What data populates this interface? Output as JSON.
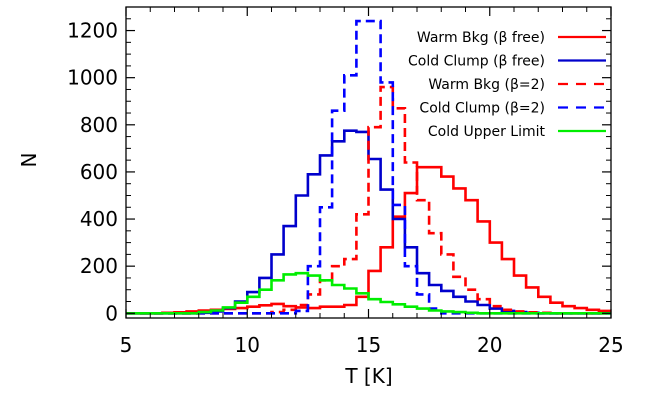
{
  "chart_data": {
    "type": "histogram",
    "xlabel": "T [K]",
    "ylabel": "N",
    "xlim": [
      5,
      25
    ],
    "ylim": [
      -20,
      1300
    ],
    "bin_width": 0.5,
    "bin_start": 5,
    "x_ticks": [
      5,
      10,
      15,
      20,
      25
    ],
    "y_ticks": [
      0,
      200,
      400,
      600,
      800,
      1000,
      1200
    ],
    "grid": false,
    "legend_position": "top-right",
    "series": [
      {
        "name": "Warm Bkg (β free)",
        "color": "#ff0000",
        "dash": "solid",
        "counts": [
          0,
          0,
          0,
          2,
          4,
          8,
          12,
          15,
          18,
          22,
          28,
          34,
          40,
          30,
          25,
          22,
          28,
          28,
          35,
          70,
          180,
          280,
          410,
          510,
          620,
          620,
          580,
          530,
          480,
          390,
          300,
          230,
          160,
          110,
          70,
          45,
          30,
          22,
          15,
          10
        ]
      },
      {
        "name": "Cold Clump (β free)",
        "color": "#0000cc",
        "dash": "solid",
        "counts": [
          0,
          0,
          0,
          0,
          0,
          0,
          2,
          8,
          22,
          50,
          90,
          150,
          250,
          370,
          500,
          590,
          670,
          730,
          775,
          770,
          655,
          525,
          400,
          280,
          170,
          120,
          95,
          70,
          50,
          35,
          20,
          10,
          5,
          2,
          0,
          0,
          0,
          0,
          0,
          0
        ]
      },
      {
        "name": "Warm Bkg (β=2)",
        "color": "#ff0000",
        "dash": "dash",
        "counts": [
          0,
          0,
          0,
          0,
          0,
          0,
          0,
          0,
          0,
          0,
          0,
          0,
          5,
          15,
          35,
          80,
          140,
          200,
          230,
          420,
          790,
          960,
          870,
          640,
          480,
          340,
          250,
          155,
          100,
          60,
          30,
          15,
          8,
          4,
          2,
          0,
          0,
          0,
          0,
          0
        ]
      },
      {
        "name": "Cold Clump (β=2)",
        "color": "#0000ff",
        "dash": "dash",
        "counts": [
          0,
          0,
          0,
          0,
          0,
          0,
          0,
          0,
          0,
          0,
          0,
          0,
          0,
          0,
          10,
          200,
          450,
          860,
          1010,
          1240,
          1240,
          980,
          460,
          200,
          80,
          20,
          0,
          0,
          0,
          0,
          0,
          0,
          0,
          0,
          0,
          0,
          0,
          0,
          0,
          0
        ]
      },
      {
        "name": "Cold Upper Limit",
        "color": "#00ee00",
        "dash": "solid",
        "counts": [
          0,
          0,
          0,
          0,
          0,
          0,
          5,
          12,
          25,
          45,
          70,
          100,
          140,
          165,
          170,
          160,
          140,
          120,
          105,
          85,
          60,
          48,
          38,
          28,
          20,
          12,
          8,
          5,
          2,
          0,
          0,
          0,
          0,
          0,
          0,
          0,
          0,
          0,
          0,
          0
        ]
      }
    ]
  }
}
